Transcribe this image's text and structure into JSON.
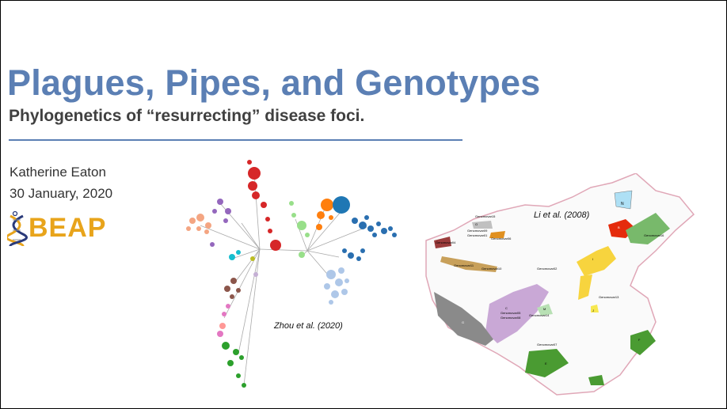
{
  "slide": {
    "title": "Plagues, Pipes, and Genotypes",
    "subtitle": "Phylogenetics of “resurrecting” disease foci.",
    "author": "Katherine Eaton",
    "date": "30 January, 2020",
    "logo_text": "BEAP",
    "tree_caption": "Zhou et al. (2020)",
    "map_caption": "Li et al. (2008)"
  },
  "map_labels": {
    "n": "N",
    "o": "O",
    "b": "B",
    "i": "I",
    "j": "J",
    "c": "C",
    "g": "G",
    "m": "M",
    "e": "E",
    "f": "F",
    "gv15": "Genomovar15",
    "gv04": "Genomovar04",
    "gv09": "Genomovar09",
    "gv01": "Genomovar01",
    "gv07": "Genomovar07",
    "gv16": "Genomovar16",
    "gv10": "Genomovar10",
    "gv13": "Genomovar13",
    "gv14": "Genomovar14",
    "gv05": "Genomovar05",
    "gv11": "Genomovar11",
    "gv08": "Genomovar08",
    "gv06": "Genomovar06",
    "gv02": "Genomovar02"
  },
  "colors": {
    "title": "#5b7fb4",
    "rule": "#5b7fb4",
    "subtitle": "#404040",
    "logo": "#e8a41b",
    "dna_dark": "#2a3a7a"
  },
  "icons": {
    "logo_mark": "dna-helix-icon"
  }
}
